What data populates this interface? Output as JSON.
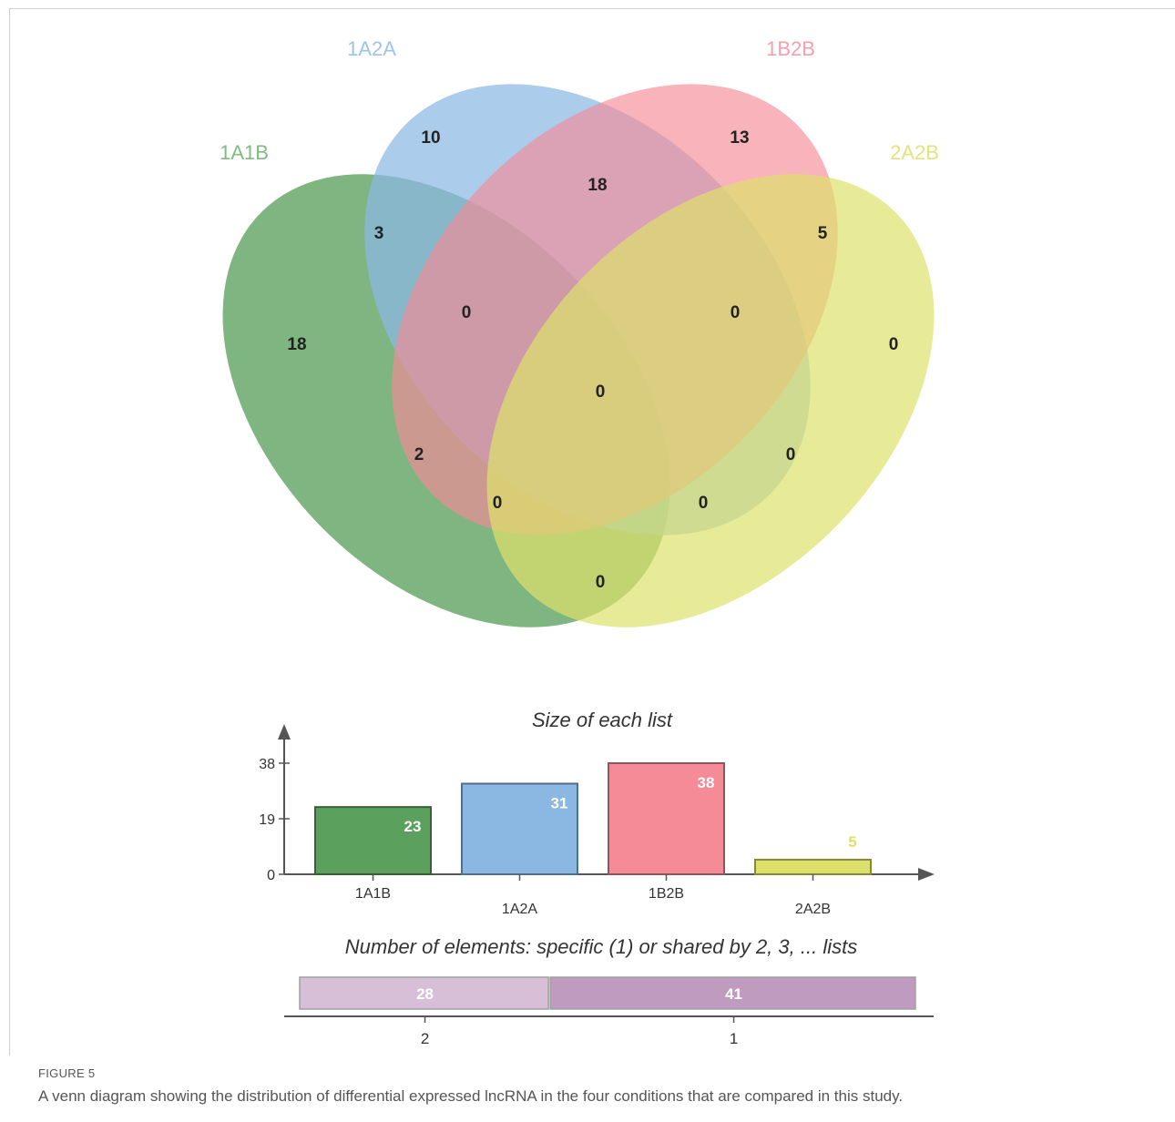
{
  "figure": {
    "label": "FIGURE 5",
    "caption": "A venn diagram showing the distribution of differential expressed lncRNA in the four conditions that are compared in this study."
  },
  "venn": {
    "sets": [
      {
        "name": "1A1B",
        "color": "#5ba05d"
      },
      {
        "name": "1A2A",
        "color": "#8bb8e3"
      },
      {
        "name": "1B2B",
        "color": "#f48b97"
      },
      {
        "name": "2A2B",
        "color": "#dde16b"
      }
    ],
    "regions": {
      "only_1A1B": "18",
      "only_1A2A": "10",
      "only_1B2B": "13",
      "only_2A2B": "0",
      "1A1B_1A2A": "3",
      "1A2A_1B2B": "18",
      "1B2B_2A2B": "5",
      "1A1B_2A2B": "0",
      "1A1B_1A2A_1B2B": "0",
      "1A2A_1B2B_2A2B": "0",
      "all_four": "0",
      "1A1B_1B2B": "2",
      "1A2A_2A2B": "0",
      "1A1B_1B2B_2A2B": "0",
      "1A1B_1A2A_2A2B": "0"
    }
  },
  "chart_data": [
    {
      "type": "bar",
      "title": "Size of each list",
      "categories": [
        "1A1B",
        "1A2A",
        "1B2B",
        "2A2B"
      ],
      "values": [
        23,
        31,
        38,
        5
      ],
      "colors": [
        "#5ba05d",
        "#8bb8e3",
        "#f48b97",
        "#dde16b"
      ],
      "yticks": [
        "0",
        "19",
        "38"
      ],
      "ylim": [
        0,
        38
      ]
    },
    {
      "type": "bar",
      "orientation": "stacked-horizontal",
      "title": "Number of elements: specific (1) or shared by 2, 3, ... lists",
      "categories": [
        "2",
        "1"
      ],
      "values": [
        28,
        41
      ],
      "colors": [
        "#d7bfd8",
        "#bf9bbf"
      ]
    }
  ]
}
